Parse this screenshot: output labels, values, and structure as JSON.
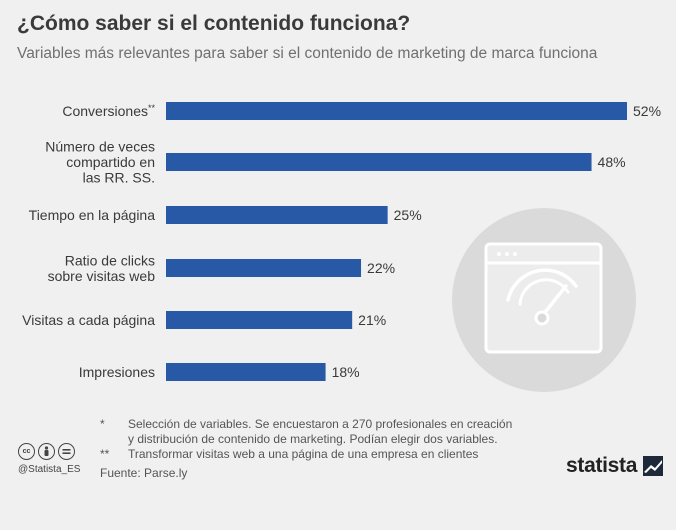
{
  "header": {
    "title": "¿Cómo saber si el contenido funciona?",
    "subtitle": "Variables más relevantes para saber si el contenido de marketing de marca funciona"
  },
  "chart_data": {
    "type": "bar",
    "orientation": "horizontal",
    "title": "¿Cómo saber si el contenido funciona?",
    "subtitle": "Variables más relevantes para saber si el contenido de marketing de marca funciona",
    "categories": [
      "Conversiones**",
      "Número de veces compartido en las RR. SS.",
      "Tiempo en la página",
      "Ratio de clicks sobre visitas web",
      "Visitas a cada página",
      "Impresiones"
    ],
    "category_lines": [
      [
        "Conversiones**"
      ],
      [
        "Número de veces",
        "compartido en",
        "las RR. SS."
      ],
      [
        "Tiempo en la página"
      ],
      [
        "Ratio de clicks",
        "sobre visitas web"
      ],
      [
        "Visitas a cada página"
      ],
      [
        "Impresiones"
      ]
    ],
    "values": [
      52,
      48,
      25,
      22,
      21,
      18
    ],
    "value_labels": [
      "52%",
      "48%",
      "25%",
      "22%",
      "21%",
      "18%"
    ],
    "unit": "%",
    "xlim": [
      0,
      52
    ],
    "grid": false,
    "bar_color": "#2759a6"
  },
  "notes": [
    {
      "mark": "*",
      "lines": [
        "Selección de variables. Se encuestaron a 270 profesionales en creación",
        "y distribución de contenido de marketing. Podían elegir dos variables."
      ]
    },
    {
      "mark": "**",
      "lines": [
        "Transformar visitas web a una página de una empresa en clientes"
      ]
    }
  ],
  "source": "Fuente: Parse.ly",
  "footer": {
    "handle": "@Statista_ES",
    "brand": "statista",
    "license_icons": [
      "cc-icon",
      "by-icon",
      "nd-icon"
    ]
  },
  "illustration": {
    "icon": "browser-gauge-icon",
    "circle_color": "#dadada"
  }
}
